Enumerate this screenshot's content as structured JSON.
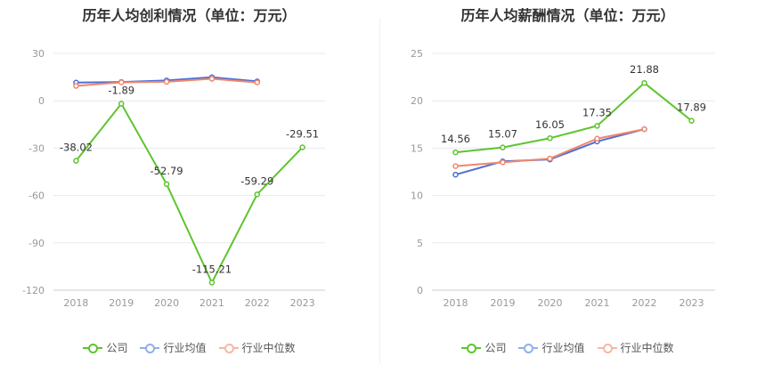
{
  "chart_data": [
    {
      "type": "line",
      "title": "历年人均创利情况（单位：万元）",
      "categories": [
        "2018",
        "2019",
        "2020",
        "2021",
        "2022",
        "2023"
      ],
      "ylim": [
        -120,
        30
      ],
      "yticks": [
        30,
        0,
        -30,
        -60,
        -90,
        -120
      ],
      "grid": true,
      "legend_position": "bottom",
      "series": [
        {
          "name": "公司",
          "color": "#5ec42f",
          "values": [
            -38.02,
            -1.89,
            -52.79,
            -115.21,
            -59.29,
            -29.51
          ],
          "labels": [
            "-38.02",
            "-1.89",
            "-52.79",
            "-115.21",
            "-59.29",
            "-29.51"
          ]
        },
        {
          "name": "行业均值",
          "color": "#4e6fd6",
          "values": [
            11.5,
            11.9,
            12.9,
            14.9,
            12.3,
            null
          ]
        },
        {
          "name": "行业中位数",
          "color": "#f0876b",
          "values": [
            9.4,
            11.7,
            12.0,
            13.9,
            11.6,
            null
          ]
        }
      ]
    },
    {
      "type": "line",
      "title": "历年人均薪酬情况（单位：万元）",
      "categories": [
        "2018",
        "2019",
        "2020",
        "2021",
        "2022",
        "2023"
      ],
      "ylim": [
        0,
        25
      ],
      "yticks": [
        25,
        20,
        15,
        10,
        5,
        0
      ],
      "grid": true,
      "legend_position": "bottom",
      "series": [
        {
          "name": "公司",
          "color": "#5ec42f",
          "values": [
            14.56,
            15.07,
            16.05,
            17.35,
            21.88,
            17.89
          ],
          "labels": [
            "14.56",
            "15.07",
            "16.05",
            "17.35",
            "21.88",
            "17.89"
          ]
        },
        {
          "name": "行业均值",
          "color": "#4e6fd6",
          "values": [
            12.2,
            13.6,
            13.8,
            15.7,
            17.0,
            null
          ]
        },
        {
          "name": "行业中位数",
          "color": "#f0876b",
          "values": [
            13.1,
            13.5,
            13.9,
            16.0,
            17.0,
            null
          ]
        }
      ]
    }
  ],
  "legend": {
    "company": "公司",
    "industry_avg": "行业均值",
    "industry_median": "行业中位数"
  },
  "colors": {
    "company": "#5ec42f",
    "industry_avg": "#8fb0ea",
    "industry_median": "#f5b8a4"
  }
}
